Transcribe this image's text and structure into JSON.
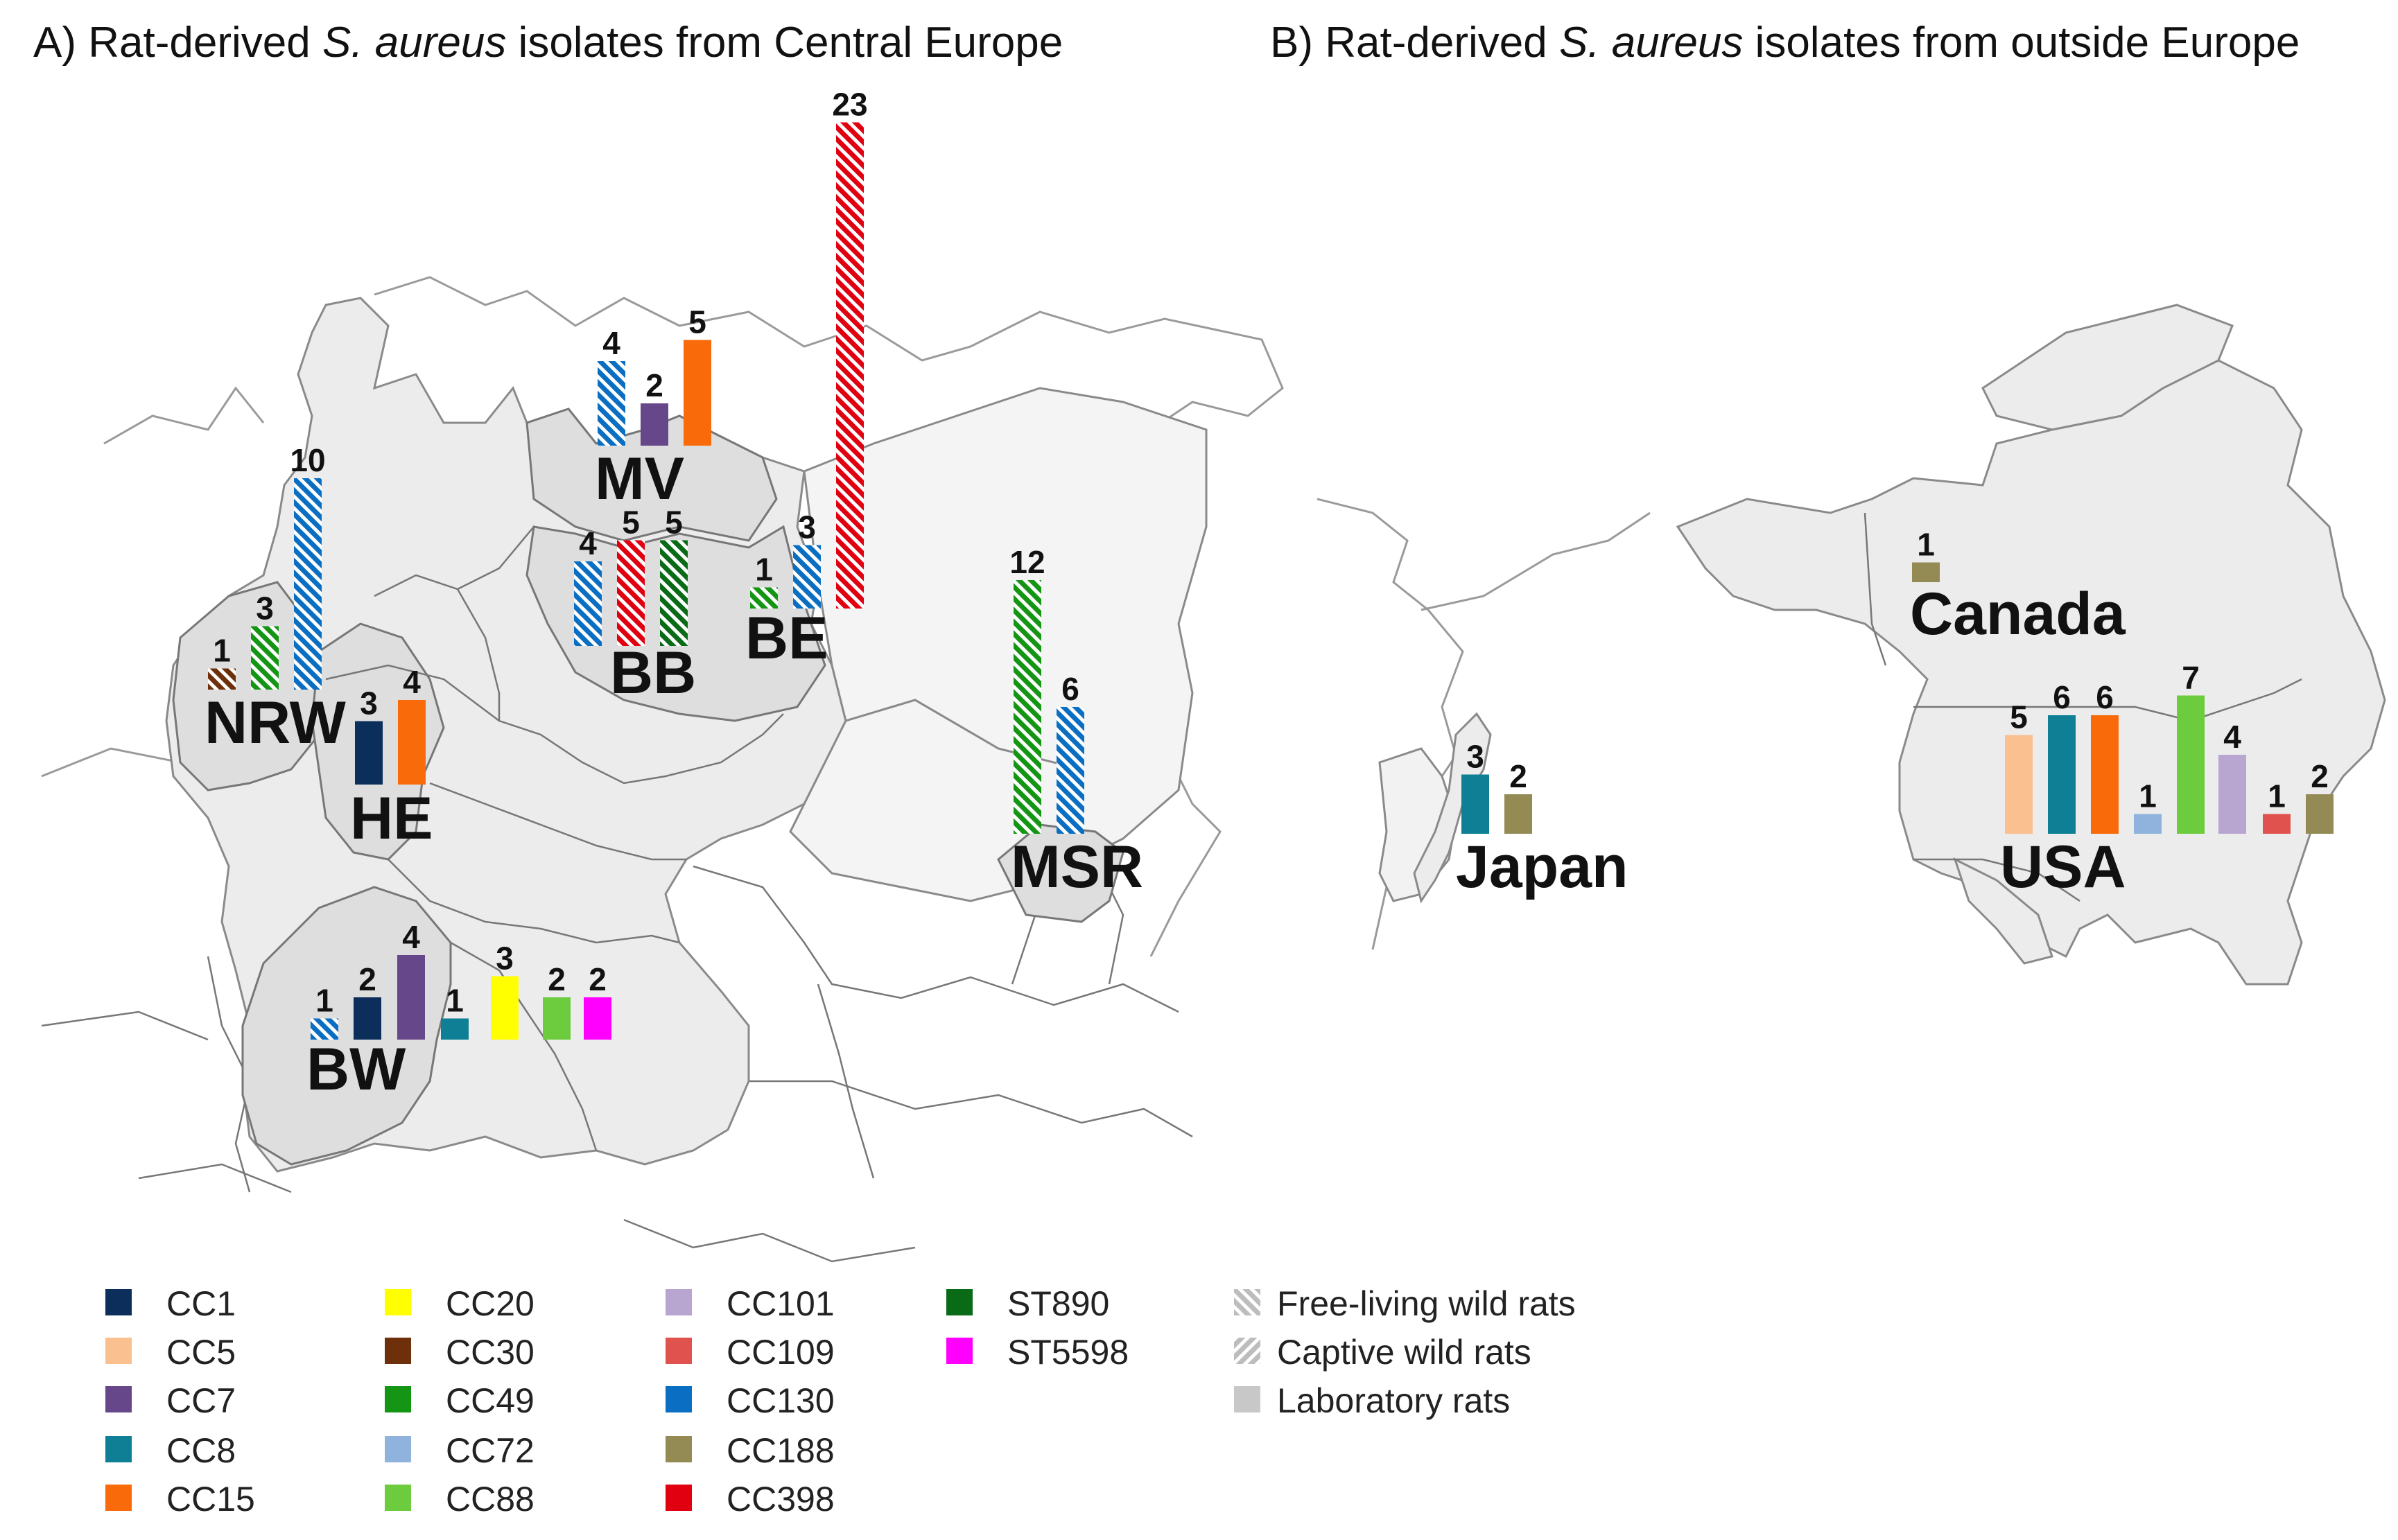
{
  "panel_a_title": {
    "prefix": "A) Rat-derived ",
    "italic": "S. aureus",
    "suffix": " isolates from Central Europe"
  },
  "panel_b_title": {
    "prefix": "B) Rat-derived ",
    "italic": "S. aureus",
    "suffix": " isolates from outside Europe"
  },
  "colors": {
    "CC1": "#0b2f5a",
    "CC5": "#fac090",
    "CC7": "#66478a",
    "CC8": "#0e7f95",
    "CC15": "#f96a0a",
    "CC20": "#ffff00",
    "CC30": "#6e300a",
    "CC49": "#149614",
    "CC72": "#8fb3dc",
    "CC88": "#6ccc3d",
    "CC101": "#b8a6d0",
    "CC109": "#e0524d",
    "CC130": "#0a6fc2",
    "CC188": "#948a54",
    "CC398": "#e00010",
    "ST890": "#096b16",
    "ST5598": "#ff00ff"
  },
  "chart_data": [
    {
      "type": "bar",
      "title": "A) Rat-derived S. aureus isolates from Central Europe",
      "regions": [
        {
          "name": "NRW",
          "bars": [
            {
              "cc": "CC30",
              "value": 1,
              "rats": "free"
            },
            {
              "cc": "CC49",
              "value": 3,
              "rats": "free"
            },
            {
              "cc": "CC130",
              "value": 10,
              "rats": "free"
            }
          ]
        },
        {
          "name": "HE",
          "bars": [
            {
              "cc": "CC1",
              "value": 3,
              "rats": "lab"
            },
            {
              "cc": "CC15",
              "value": 4,
              "rats": "lab"
            }
          ]
        },
        {
          "name": "MV",
          "bars": [
            {
              "cc": "CC130",
              "value": 4,
              "rats": "free"
            },
            {
              "cc": "CC7",
              "value": 2,
              "rats": "lab"
            },
            {
              "cc": "CC15",
              "value": 5,
              "rats": "lab"
            }
          ]
        },
        {
          "name": "BB",
          "bars": [
            {
              "cc": "CC130",
              "value": 4,
              "rats": "free"
            },
            {
              "cc": "CC398",
              "value": 5,
              "rats": "free"
            },
            {
              "cc": "ST890",
              "value": 5,
              "rats": "free"
            }
          ]
        },
        {
          "name": "BE",
          "bars": [
            {
              "cc": "CC49",
              "value": 1,
              "rats": "free"
            },
            {
              "cc": "CC130",
              "value": 3,
              "rats": "free"
            },
            {
              "cc": "CC398",
              "value": 23,
              "rats": "free"
            }
          ]
        },
        {
          "name": "MSR",
          "bars": [
            {
              "cc": "CC49",
              "value": 12,
              "rats": "free"
            },
            {
              "cc": "CC130",
              "value": 6,
              "rats": "free"
            }
          ]
        },
        {
          "name": "BW",
          "bars": [
            {
              "cc": "CC130",
              "value": 1,
              "rats": "free"
            },
            {
              "cc": "CC1",
              "value": 2,
              "rats": "lab"
            },
            {
              "cc": "CC7",
              "value": 4,
              "rats": "lab"
            },
            {
              "cc": "CC8",
              "value": 1,
              "rats": "lab"
            },
            {
              "cc": "CC20",
              "value": 3,
              "rats": "lab"
            },
            {
              "cc": "CC88",
              "value": 2,
              "rats": "lab"
            },
            {
              "cc": "ST5598",
              "value": 2,
              "rats": "lab"
            }
          ]
        }
      ]
    },
    {
      "type": "bar",
      "title": "B) Rat-derived S. aureus isolates from outside Europe",
      "regions": [
        {
          "name": "Canada",
          "bars": [
            {
              "cc": "CC188",
              "value": 1,
              "rats": "lab"
            }
          ]
        },
        {
          "name": "Japan",
          "bars": [
            {
              "cc": "CC8",
              "value": 3,
              "rats": "lab"
            },
            {
              "cc": "CC188",
              "value": 2,
              "rats": "lab"
            }
          ]
        },
        {
          "name": "USA",
          "bars": [
            {
              "cc": "CC5",
              "value": 5,
              "rats": "lab"
            },
            {
              "cc": "CC8",
              "value": 6,
              "rats": "lab"
            },
            {
              "cc": "CC15",
              "value": 6,
              "rats": "lab"
            },
            {
              "cc": "CC72",
              "value": 1,
              "rats": "lab"
            },
            {
              "cc": "CC88",
              "value": 7,
              "rats": "lab"
            },
            {
              "cc": "CC101",
              "value": 4,
              "rats": "lab"
            },
            {
              "cc": "CC109",
              "value": 1,
              "rats": "lab"
            },
            {
              "cc": "CC188",
              "value": 2,
              "rats": "lab"
            }
          ]
        }
      ]
    }
  ],
  "legend": {
    "lineages": [
      "CC1",
      "CC5",
      "CC7",
      "CC8",
      "CC15",
      "CC20",
      "CC30",
      "CC49",
      "CC72",
      "CC88",
      "CC101",
      "CC109",
      "CC130",
      "CC188",
      "CC398",
      "ST890",
      "ST5598"
    ],
    "origin": [
      {
        "key": "free",
        "label": "Free-living wild rats"
      },
      {
        "key": "captive",
        "label": "Captive wild rats"
      },
      {
        "key": "lab",
        "label": "Laboratory rats"
      }
    ]
  }
}
